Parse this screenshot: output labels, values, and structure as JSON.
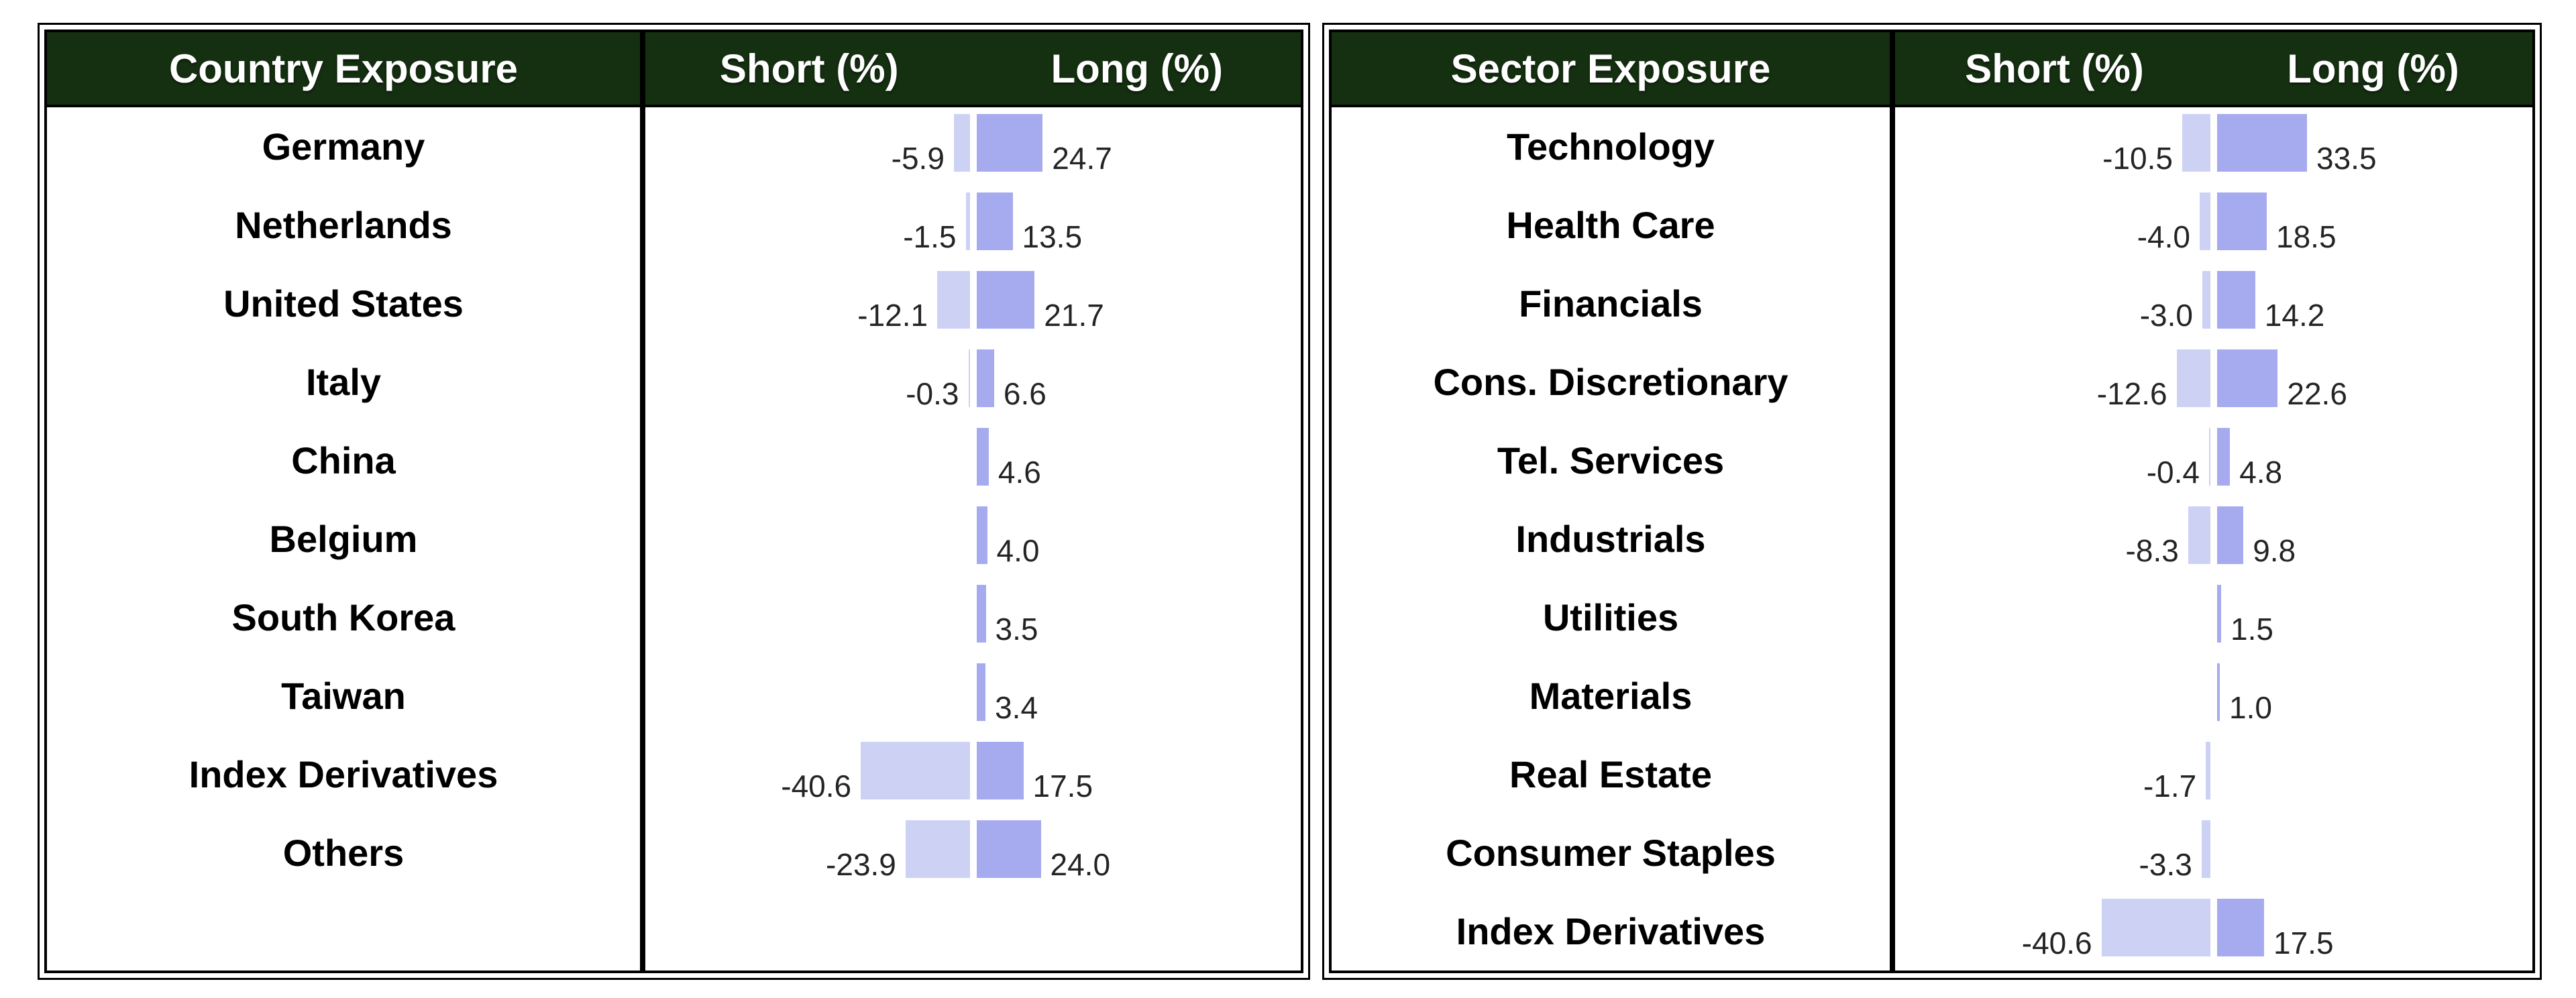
{
  "colors": {
    "header_bg": "#143010",
    "header_text": "#ffffff",
    "short_bar": "#cdd2f5",
    "long_bar": "#a6abef",
    "border": "#000000",
    "row_label_text": "#000000",
    "value_text": "#242424"
  },
  "chart_data": [
    {
      "type": "bar",
      "orientation": "horizontal",
      "title": "Country Exposure",
      "short_header": "Short (%)",
      "long_header": "Long (%)",
      "categories": [
        "Germany",
        "Netherlands",
        "United States",
        "Italy",
        "China",
        "Belgium",
        "South Korea",
        "Taiwan",
        "Index Derivatives",
        "Others"
      ],
      "series": [
        {
          "name": "Short (%)",
          "values": [
            -5.9,
            -1.5,
            -12.1,
            -0.3,
            null,
            null,
            null,
            null,
            -40.6,
            -23.9
          ],
          "labels": [
            "-5.9",
            "-1.5",
            "-12.1",
            "-0.3",
            "",
            "",
            "",
            "",
            "-40.6",
            "-23.9"
          ]
        },
        {
          "name": "Long (%)",
          "values": [
            24.7,
            13.5,
            21.7,
            6.6,
            4.6,
            4.0,
            3.5,
            3.4,
            17.5,
            24.0
          ],
          "labels": [
            "24.7",
            "13.5",
            "21.7",
            "6.6",
            "4.6",
            "4.0",
            "3.5",
            "3.4",
            "17.5",
            "24.0"
          ]
        }
      ],
      "axis": {
        "zero_centered": true,
        "unit": "percent",
        "gridlines": false
      }
    },
    {
      "type": "bar",
      "orientation": "horizontal",
      "title": "Sector Exposure",
      "short_header": "Short (%)",
      "long_header": "Long (%)",
      "categories": [
        "Technology",
        "Health Care",
        "Financials",
        "Cons. Discretionary",
        "Tel. Services",
        "Industrials",
        "Utilities",
        "Materials",
        "Real Estate",
        "Consumer Staples",
        "Index Derivatives"
      ],
      "series": [
        {
          "name": "Short (%)",
          "values": [
            -10.5,
            -4.0,
            -3.0,
            -12.6,
            -0.4,
            -8.3,
            null,
            null,
            -1.7,
            -3.3,
            -40.6
          ],
          "labels": [
            "-10.5",
            "-4.0",
            "-3.0",
            "-12.6",
            "-0.4",
            "-8.3",
            "",
            "",
            "-1.7",
            "-3.3",
            "-40.6"
          ]
        },
        {
          "name": "Long (%)",
          "values": [
            33.5,
            18.5,
            14.2,
            22.6,
            4.8,
            9.8,
            1.5,
            1.0,
            null,
            null,
            17.5
          ],
          "labels": [
            "33.5",
            "18.5",
            "14.2",
            "22.6",
            "4.8",
            "9.8",
            "1.5",
            "1.0",
            "",
            "",
            "17.5"
          ]
        }
      ],
      "axis": {
        "zero_centered": true,
        "unit": "percent",
        "gridlines": false
      }
    }
  ]
}
